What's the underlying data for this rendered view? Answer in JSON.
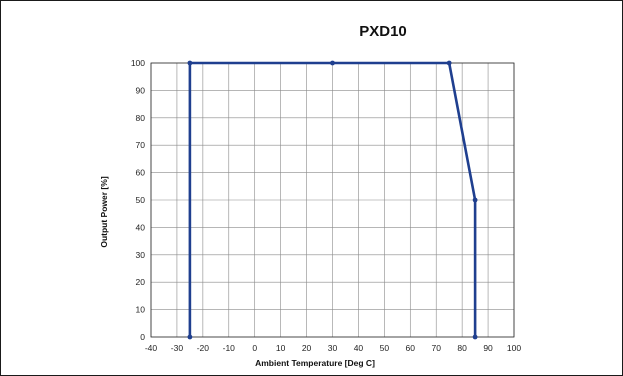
{
  "chart_data": {
    "type": "line",
    "title": "PXD10",
    "xlabel": "Ambient Temperature [Deg C]",
    "ylabel": "Output Power [%]",
    "xlim": [
      -40,
      100
    ],
    "ylim": [
      0,
      100
    ],
    "x_ticks": [
      "-40",
      "-30",
      "-20",
      "-10",
      "0",
      "10",
      "20",
      "30",
      "40",
      "50",
      "60",
      "70",
      "80",
      "90",
      "100"
    ],
    "y_ticks": [
      "0",
      "10",
      "20",
      "30",
      "40",
      "50",
      "60",
      "70",
      "80",
      "90",
      "100"
    ],
    "grid": true,
    "series": [
      {
        "x": [
          -25,
          -25,
          30,
          75,
          85,
          85
        ],
        "y": [
          0,
          100,
          100,
          100,
          50,
          0
        ],
        "color": "#1f3f8f"
      }
    ]
  }
}
